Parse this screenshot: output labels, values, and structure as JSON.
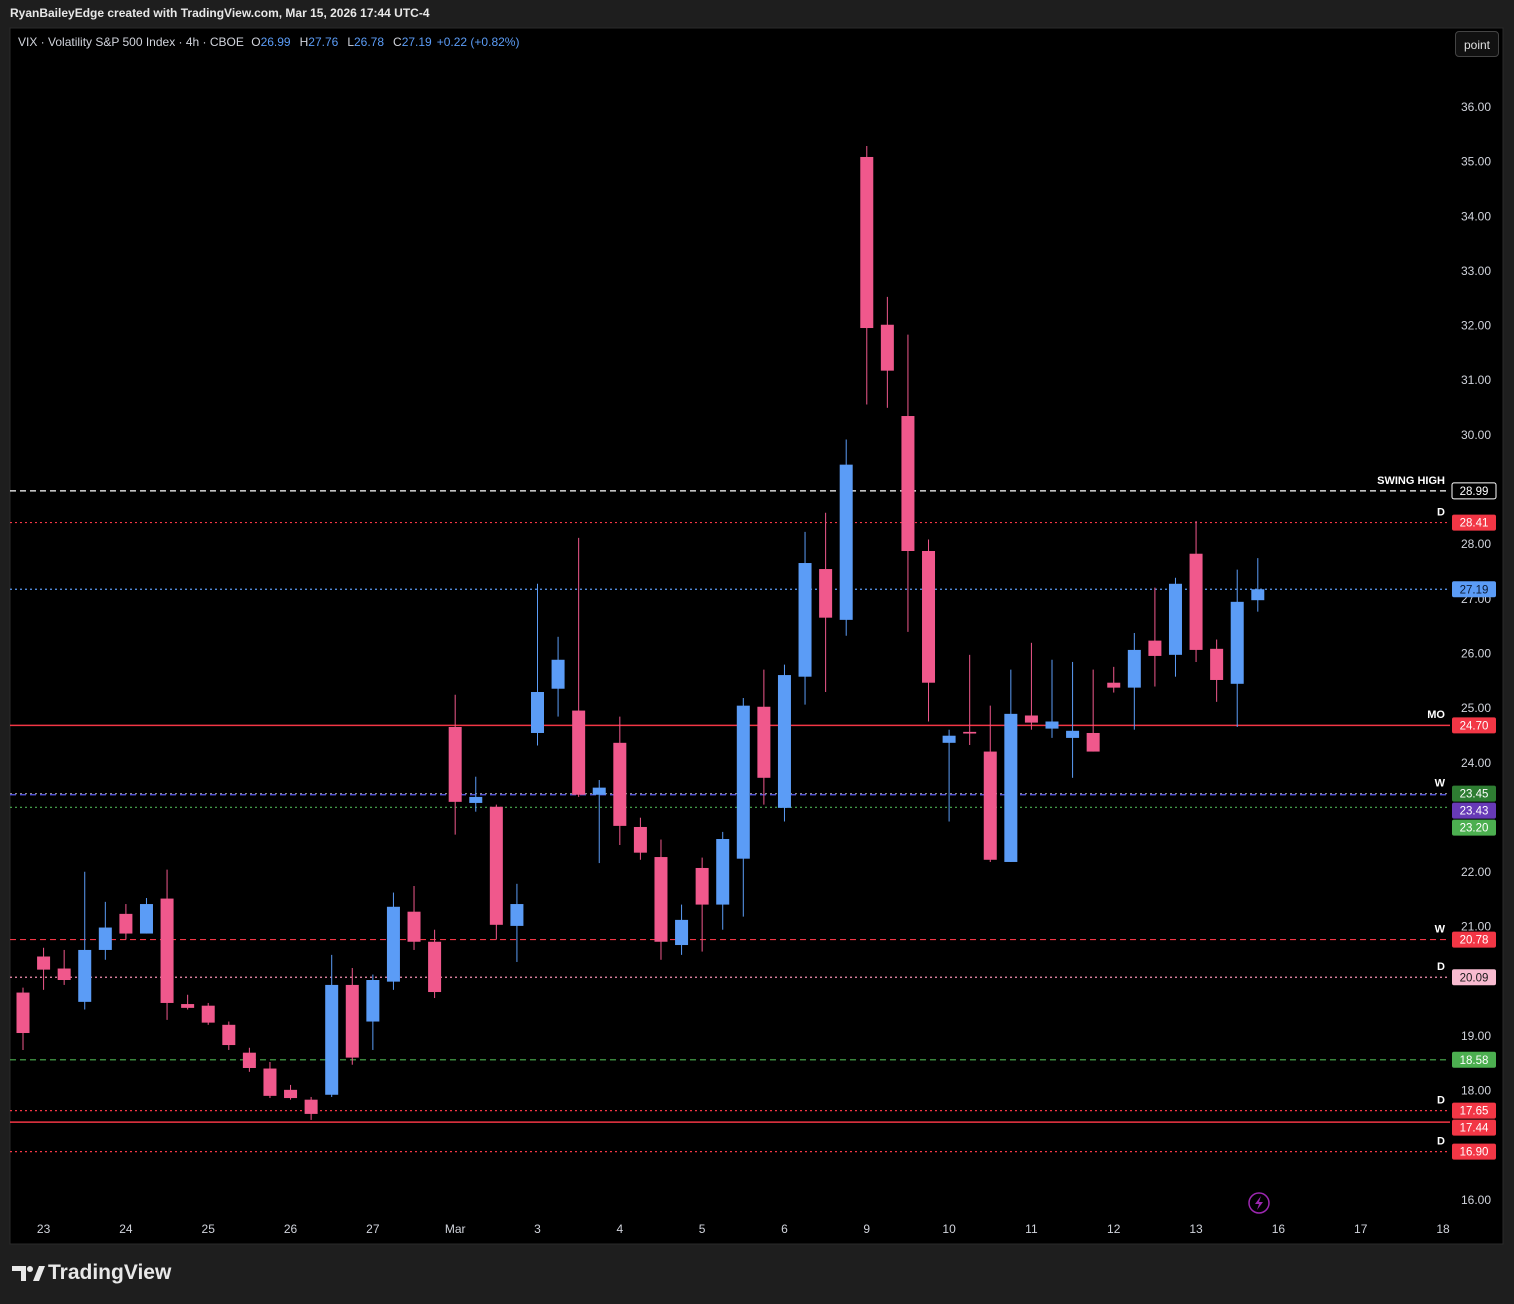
{
  "header": {
    "attribution": "RyanBaileyEdge created with TradingView.com, Mar 15, 2026 17:44 UTC-4"
  },
  "toolbar": {
    "button": "point"
  },
  "footer": {
    "brand": "TradingView"
  },
  "chart_data": {
    "type": "candlestick",
    "title": "VIX · Volatility S&P 500 Index · 4h · CBOE",
    "legend_keys": [
      "O",
      "H",
      "L",
      "C"
    ],
    "change": "+0.22 (+0.82%)",
    "categories": [
      null,
      "23",
      null,
      null,
      null,
      "24",
      null,
      null,
      null,
      "25",
      null,
      null,
      null,
      "26",
      null,
      null,
      null,
      "27",
      null,
      null,
      null,
      "Mar",
      null,
      null,
      null,
      "3",
      null,
      null,
      null,
      "4",
      null,
      null,
      null,
      "5",
      null,
      null,
      null,
      "6",
      null,
      null,
      null,
      "9",
      null,
      null,
      null,
      "10",
      null,
      null,
      null,
      "11",
      null,
      null,
      null,
      "12",
      null,
      null,
      null,
      "13",
      null,
      null,
      null,
      "16",
      null,
      null,
      null,
      "17",
      null,
      null,
      null,
      "18"
    ],
    "open": [
      19.81,
      20.47,
      20.25,
      19.64,
      20.59,
      21.25,
      20.89,
      21.53,
      19.6,
      19.57,
      19.22,
      18.71,
      18.42,
      18.03,
      17.85,
      17.94,
      19.95,
      19.28,
      20.01,
      21.29,
      20.74,
      24.67,
      23.28,
      23.21,
      21.03,
      24.56,
      25.37,
      24.97,
      23.43,
      24.38,
      22.84,
      22.29,
      20.68,
      22.09,
      21.42,
      22.26,
      25.04,
      23.19,
      25.59,
      27.56,
      26.63,
      35.1,
      32.03,
      30.36,
      27.89,
      24.38,
      24.58,
      24.22,
      22.2,
      24.88,
      24.64,
      24.47,
      24.56,
      25.48,
      25.39,
      26.25,
      25.99,
      27.84,
      26.1,
      25.46,
      26.99,
      null,
      null,
      null,
      null,
      null,
      null,
      null,
      null,
      null
    ],
    "high": [
      19.9,
      20.63,
      20.59,
      22.02,
      21.47,
      21.43,
      21.54,
      22.06,
      19.77,
      19.62,
      19.28,
      18.8,
      18.54,
      18.12,
      17.9,
      20.5,
      20.26,
      20.14,
      21.64,
      21.76,
      20.96,
      25.26,
      23.76,
      23.25,
      21.8,
      27.29,
      26.32,
      28.13,
      23.7,
      24.86,
      23.01,
      22.61,
      21.42,
      22.28,
      22.75,
      25.2,
      25.72,
      25.81,
      28.24,
      28.59,
      29.93,
      35.3,
      32.54,
      31.85,
      28.1,
      24.62,
      25.99,
      25.06,
      25.72,
      26.21,
      25.9,
      25.86,
      25.72,
      25.77,
      26.39,
      27.22,
      27.4,
      28.44,
      26.27,
      27.55,
      27.76,
      null,
      null,
      null,
      null,
      null,
      null,
      null,
      null,
      null
    ],
    "low": [
      18.76,
      19.86,
      19.95,
      19.5,
      20.41,
      20.78,
      20.89,
      19.31,
      19.5,
      19.22,
      18.76,
      18.36,
      17.88,
      17.85,
      17.48,
      17.9,
      18.49,
      18.76,
      19.86,
      20.59,
      19.71,
      22.7,
      23.12,
      20.78,
      20.37,
      24.33,
      24.86,
      23.39,
      22.18,
      22.51,
      22.24,
      20.41,
      20.5,
      20.56,
      20.96,
      21.2,
      23.25,
      22.94,
      25.08,
      25.31,
      26.34,
      30.57,
      30.51,
      26.41,
      24.77,
      22.94,
      24.34,
      22.2,
      22.2,
      24.62,
      24.47,
      23.74,
      24.22,
      25.3,
      24.62,
      25.41,
      25.59,
      25.86,
      25.13,
      24.67,
      26.78,
      null,
      null,
      null,
      null,
      null,
      null,
      null,
      null,
      null
    ],
    "close": [
      19.07,
      20.23,
      20.04,
      20.59,
      21.0,
      20.89,
      21.43,
      19.62,
      19.53,
      19.26,
      18.85,
      18.43,
      17.92,
      17.88,
      17.59,
      19.95,
      18.62,
      20.04,
      21.38,
      20.74,
      19.82,
      23.3,
      23.39,
      21.05,
      21.43,
      25.31,
      25.9,
      23.43,
      23.56,
      22.86,
      22.37,
      20.74,
      21.14,
      21.42,
      22.62,
      25.06,
      23.74,
      25.62,
      27.67,
      26.67,
      29.47,
      31.97,
      31.19,
      27.89,
      25.48,
      24.51,
      24.55,
      22.24,
      24.91,
      24.75,
      24.77,
      24.6,
      24.22,
      25.39,
      26.08,
      25.97,
      27.29,
      26.08,
      25.53,
      26.96,
      27.19,
      null,
      null,
      null,
      null,
      null,
      null,
      null,
      null,
      null
    ],
    "up_color": "#5b9cf6",
    "down_color": "#f0588c",
    "ylim": [
      15.74,
      37.46
    ],
    "yticks": [
      {
        "value": 16,
        "label": "16.00"
      },
      {
        "value": 18,
        "label": "18.00"
      },
      {
        "value": 19,
        "label": "19.00"
      },
      {
        "value": 21,
        "label": "21.00"
      },
      {
        "value": 22,
        "label": "22.00"
      },
      {
        "value": 24,
        "label": "24.00"
      },
      {
        "value": 25,
        "label": "25.00"
      },
      {
        "value": 26,
        "label": "26.00"
      },
      {
        "value": 27,
        "label": "27.00"
      },
      {
        "value": 28,
        "label": "28.00"
      },
      {
        "value": 30,
        "label": "30.00"
      },
      {
        "value": 31,
        "label": "31.00"
      },
      {
        "value": 32,
        "label": "32.00"
      },
      {
        "value": 33,
        "label": "33.00"
      },
      {
        "value": 34,
        "label": "34.00"
      },
      {
        "value": 35,
        "label": "35.00"
      },
      {
        "value": 36,
        "label": "36.00"
      }
    ],
    "levels": [
      {
        "value": 28.99,
        "tag": "SWING HIGH",
        "color": "#ffffff",
        "style": "dashed",
        "label_bg": "#000000",
        "label_color": "#ffffff"
      },
      {
        "value": 28.41,
        "tag": "D",
        "color": "#f23645",
        "style": "dotted",
        "label_bg": "#f23645",
        "label_color": "#ffffff"
      },
      {
        "value": 27.19,
        "color": "#5b9cf6",
        "style": "dotted",
        "label_bg": "#5b9cf6",
        "label_color": "#0b1a33"
      },
      {
        "value": 24.7,
        "label": "24.70",
        "tag": "MO",
        "color": "#f23645",
        "style": "solid",
        "label_bg": "#f23645",
        "label_color": "#ffffff"
      },
      {
        "value": 23.45,
        "tag": "W",
        "color": "#8a8a8a",
        "style": "dotted",
        "label_bg": "#2e7d32",
        "label_color": "#ffffff"
      },
      {
        "value": 23.43,
        "color": "#5b5bea",
        "style": "dashed",
        "label_bg": "#673ab7",
        "label_color": "#ffffff"
      },
      {
        "value": 23.2,
        "label": "23.20",
        "color": "#4caf50",
        "style": "dotted",
        "label_bg": "#4caf50",
        "label_color": "#ffffff"
      },
      {
        "value": 20.78,
        "tag": "W",
        "color": "#f23645",
        "style": "dashed",
        "label_bg": "#f23645",
        "label_color": "#ffffff"
      },
      {
        "value": 20.09,
        "tag": "D",
        "color": "#f48fb1",
        "style": "dotted",
        "label_bg": "#f8bbd0",
        "label_color": "#1a1a1a"
      },
      {
        "value": 18.58,
        "color": "#4caf50",
        "style": "dashed",
        "label_bg": "#4caf50",
        "label_color": "#ffffff"
      },
      {
        "value": 17.65,
        "tag": "D",
        "color": "#f23645",
        "style": "dotted",
        "label_bg": "#f23645",
        "label_color": "#ffffff"
      },
      {
        "value": 17.44,
        "color": "#f23645",
        "style": "solid",
        "label_bg": "#f23645",
        "label_color": "#ffffff"
      },
      {
        "value": 16.9,
        "label": "16.90",
        "tag": "D",
        "color": "#f23645",
        "style": "dotted",
        "label_bg": "#f23645",
        "label_color": "#ffffff"
      }
    ]
  }
}
